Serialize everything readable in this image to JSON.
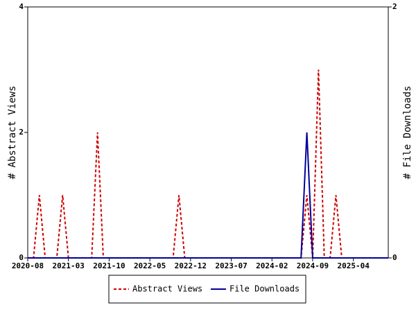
{
  "chart_data": {
    "type": "line",
    "y_label": "# Abstract Views",
    "y2_label": "# File Downloads",
    "categories": [
      "2020-08",
      null,
      null,
      null,
      null,
      null,
      null,
      "2021-03",
      null,
      null,
      null,
      null,
      null,
      null,
      "2021-10",
      null,
      null,
      null,
      null,
      null,
      null,
      "2022-05",
      null,
      null,
      null,
      null,
      null,
      null,
      "2022-12",
      null,
      null,
      null,
      null,
      null,
      null,
      "2023-07",
      null,
      null,
      null,
      null,
      null,
      null,
      "2024-02",
      null,
      null,
      null,
      null,
      null,
      null,
      "2024-09",
      null,
      null,
      null,
      null,
      null,
      null,
      "2025-04",
      null,
      null,
      null,
      null,
      null,
      null
    ],
    "series": [
      {
        "name": "Abstract Views",
        "color": "#cc0000",
        "line_style": "dashed",
        "values": [
          0,
          0,
          1,
          0,
          0,
          0,
          1,
          0,
          0,
          0,
          0,
          0,
          2,
          0,
          0,
          0,
          0,
          0,
          0,
          0,
          0,
          0,
          0,
          0,
          0,
          0,
          1,
          0,
          0,
          0,
          0,
          0,
          0,
          0,
          0,
          0,
          0,
          0,
          0,
          0,
          0,
          0,
          0,
          0,
          0,
          0,
          0,
          0,
          1,
          0,
          3,
          0,
          0,
          1,
          0,
          0,
          0,
          0,
          0,
          0,
          0,
          0,
          0
        ]
      },
      {
        "name": "File Downloads",
        "color": "#000099",
        "line_style": "solid",
        "axis": "y2",
        "values": [
          0,
          0,
          0,
          0,
          0,
          0,
          0,
          0,
          0,
          0,
          0,
          0,
          0,
          0,
          0,
          0,
          0,
          0,
          0,
          0,
          0,
          0,
          0,
          0,
          0,
          0,
          0,
          0,
          0,
          0,
          0,
          0,
          0,
          0,
          0,
          0,
          0,
          0,
          0,
          0,
          0,
          0,
          0,
          0,
          0,
          0,
          0,
          0,
          1,
          0,
          0,
          0,
          0,
          0,
          0,
          0,
          0,
          0,
          0,
          0,
          0,
          0,
          0
        ]
      }
    ],
    "ylim": [
      0,
      4
    ],
    "yticks": [
      0,
      2,
      4
    ],
    "y2lim": [
      0,
      2
    ],
    "y2ticks": [
      0,
      2
    ],
    "legend": "bottom"
  }
}
